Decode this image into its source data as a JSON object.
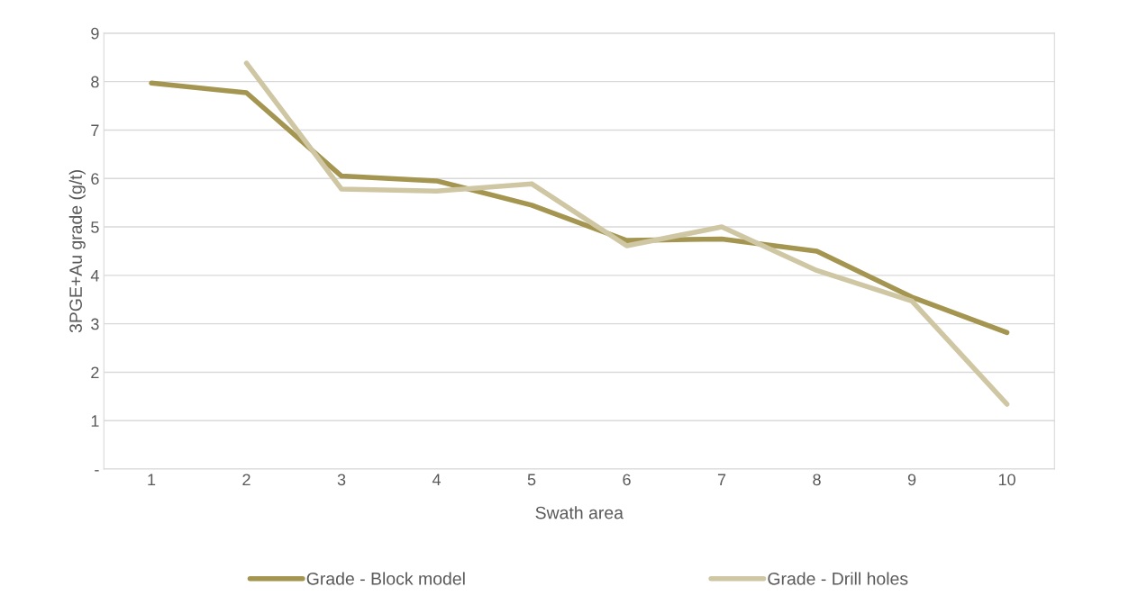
{
  "chart_data": {
    "type": "line",
    "xlabel": "Swath area",
    "ylabel": "3PGE+Au grade (g/t)",
    "categories": [
      "1",
      "2",
      "3",
      "4",
      "5",
      "6",
      "7",
      "8",
      "9",
      "10"
    ],
    "series": [
      {
        "name": "Grade - Block model",
        "color": "#a49650",
        "values": [
          7.97,
          7.77,
          6.05,
          5.95,
          5.45,
          4.72,
          4.75,
          4.5,
          3.55,
          2.82
        ]
      },
      {
        "name": "Grade - Drill holes",
        "color": "#cfc7a4",
        "values": [
          null,
          8.38,
          5.78,
          5.74,
          5.89,
          4.61,
          5.0,
          4.1,
          3.47,
          1.34
        ]
      }
    ],
    "ylim": [
      0,
      9
    ],
    "yticks": [
      {
        "value": 0,
        "label": "-"
      },
      1,
      2,
      3,
      4,
      5,
      6,
      7,
      8,
      9
    ],
    "grid": "y",
    "legend": "bottom",
    "marker": "none",
    "line_style": "solid"
  }
}
